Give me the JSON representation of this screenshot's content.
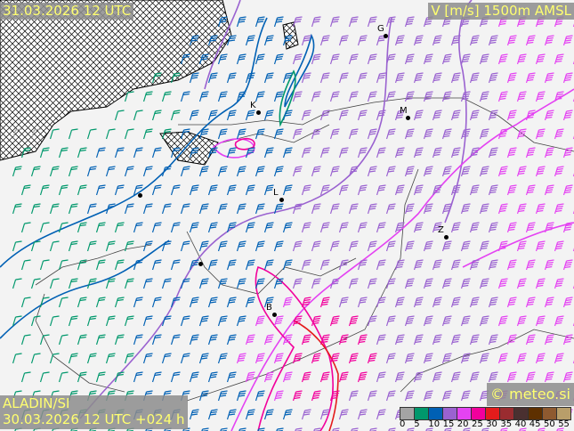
{
  "header": {
    "valid_time": "31.03.2026 12 UTC",
    "field_title": "V [m/s] 1500m AMSL"
  },
  "footer": {
    "model": "ALADIN/SI",
    "run_info": "30.03.2026 12 UTC +024 h",
    "copyright": "© meteo.si"
  },
  "cities": [
    {
      "label": "G"
    },
    {
      "label": "K"
    },
    {
      "label": "M"
    },
    {
      "label": "L"
    },
    {
      "label": "Z"
    },
    {
      "label": "B"
    }
  ],
  "legend": {
    "unit": "m/s",
    "ticks": [
      "0",
      "5",
      "10",
      "15",
      "20",
      "25",
      "30",
      "35",
      "40",
      "45",
      "50",
      "55"
    ],
    "colors": [
      "#a4a4a4",
      "#00986c",
      "#0060b4",
      "#9a62d0",
      "#e443f2",
      "#f2009c",
      "#e41c1c",
      "#9a2c30",
      "#4a3030",
      "#5e3000",
      "#8e5a30",
      "#b89e6a"
    ]
  },
  "map": {
    "background_color": "#f3f3f3",
    "wind_direction": "south-westerly",
    "hatched_area_color": "#000000"
  }
}
